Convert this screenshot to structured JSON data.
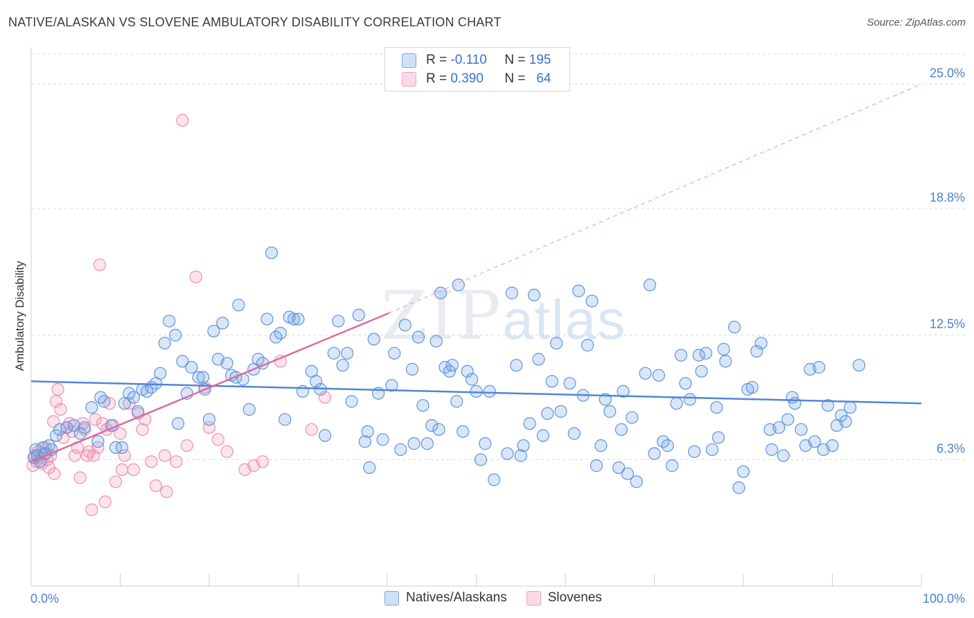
{
  "title": "NATIVE/ALASKAN VS SLOVENE AMBULATORY DISABILITY CORRELATION CHART",
  "source": "Source: ZipAtlas.com",
  "watermark": {
    "zip": "ZIP",
    "atlas": "atlas"
  },
  "legend": {
    "rows": [
      {
        "r_label": "R =",
        "r_value": "-0.110",
        "n_label": "N =",
        "n_value": "195",
        "color": "#7aa8e6"
      },
      {
        "r_label": "R =",
        "r_value": "0.390",
        "n_label": "N =",
        "n_value": "64",
        "color": "#f0a0bb"
      }
    ]
  },
  "bottom_legend": [
    "Natives/Alaskans",
    "Slovenes"
  ],
  "colors": {
    "blue": "#4f86d6",
    "pink": "#e0699a",
    "blue_fill": "rgba(120,165,230,0.28)",
    "pink_fill": "rgba(240,150,180,0.25)"
  },
  "chart_data": {
    "type": "scatter",
    "title": "NATIVE/ALASKAN VS SLOVENE AMBULATORY DISABILITY CORRELATION CHART",
    "xlabel": "",
    "ylabel": "Ambulatory Disability",
    "xlim": [
      0,
      100
    ],
    "ylim": [
      0,
      26.5
    ],
    "x_tick_labels": [
      "0.0%",
      "100.0%"
    ],
    "y_ticks": [
      6.3,
      12.5,
      18.8,
      25.0
    ],
    "y_tick_labels": [
      "6.3%",
      "12.5%",
      "18.8%",
      "25.0%"
    ],
    "grid": true,
    "legend_position": "top-center",
    "series": [
      {
        "name": "Natives/Alaskans",
        "trend": {
          "x": [
            0,
            100
          ],
          "y": [
            10.2,
            9.1
          ]
        },
        "points": [
          [
            0.3,
            6.4
          ],
          [
            0.5,
            6.8
          ],
          [
            0.7,
            6.5
          ],
          [
            1.0,
            6.2
          ],
          [
            1.3,
            6.9
          ],
          [
            1.6,
            6.6
          ],
          [
            2.0,
            7.0
          ],
          [
            2.3,
            6.8
          ],
          [
            2.8,
            7.5
          ],
          [
            3.2,
            7.8
          ],
          [
            4.0,
            7.9
          ],
          [
            4.8,
            8.0
          ],
          [
            5.5,
            7.6
          ],
          [
            6.0,
            7.9
          ],
          [
            6.8,
            8.9
          ],
          [
            7.5,
            7.2
          ],
          [
            7.8,
            9.4
          ],
          [
            8.2,
            9.2
          ],
          [
            9.0,
            8.0
          ],
          [
            9.5,
            6.9
          ],
          [
            10.2,
            6.9
          ],
          [
            10.5,
            9.1
          ],
          [
            11.0,
            9.6
          ],
          [
            11.5,
            9.4
          ],
          [
            12.0,
            8.7
          ],
          [
            12.5,
            9.8
          ],
          [
            13.0,
            9.7
          ],
          [
            13.5,
            9.9
          ],
          [
            14.0,
            10.1
          ],
          [
            14.5,
            10.6
          ],
          [
            15.0,
            12.1
          ],
          [
            15.5,
            13.2
          ],
          [
            16.2,
            12.5
          ],
          [
            16.5,
            8.1
          ],
          [
            17.0,
            11.2
          ],
          [
            17.5,
            9.6
          ],
          [
            18.0,
            10.9
          ],
          [
            18.8,
            10.4
          ],
          [
            19.3,
            10.4
          ],
          [
            19.5,
            9.8
          ],
          [
            20.0,
            8.3
          ],
          [
            20.5,
            12.7
          ],
          [
            21.0,
            11.3
          ],
          [
            21.5,
            13.1
          ],
          [
            22.0,
            11.1
          ],
          [
            22.5,
            10.5
          ],
          [
            23.0,
            10.4
          ],
          [
            23.3,
            14.0
          ],
          [
            23.8,
            10.3
          ],
          [
            24.5,
            8.8
          ],
          [
            25.0,
            10.8
          ],
          [
            25.5,
            11.3
          ],
          [
            26.0,
            11.1
          ],
          [
            26.5,
            13.3
          ],
          [
            27.0,
            16.6
          ],
          [
            27.5,
            12.4
          ],
          [
            28.0,
            12.6
          ],
          [
            28.5,
            8.3
          ],
          [
            29.0,
            13.4
          ],
          [
            29.5,
            13.3
          ],
          [
            30.0,
            13.3
          ],
          [
            30.5,
            9.7
          ],
          [
            31.5,
            10.7
          ],
          [
            32.0,
            10.2
          ],
          [
            32.5,
            9.8
          ],
          [
            33.0,
            7.5
          ],
          [
            34.0,
            11.6
          ],
          [
            34.5,
            13.2
          ],
          [
            35.0,
            11.0
          ],
          [
            35.5,
            11.6
          ],
          [
            36.0,
            9.2
          ],
          [
            36.8,
            13.5
          ],
          [
            37.5,
            7.2
          ],
          [
            37.8,
            7.7
          ],
          [
            38.0,
            5.9
          ],
          [
            38.5,
            12.3
          ],
          [
            39.0,
            9.6
          ],
          [
            39.5,
            7.3
          ],
          [
            40.5,
            10.0
          ],
          [
            40.8,
            11.6
          ],
          [
            41.5,
            6.8
          ],
          [
            42.0,
            13.0
          ],
          [
            42.8,
            10.8
          ],
          [
            43.0,
            7.1
          ],
          [
            43.5,
            12.4
          ],
          [
            44.0,
            9.0
          ],
          [
            44.5,
            7.1
          ],
          [
            45.0,
            8.0
          ],
          [
            45.5,
            12.2
          ],
          [
            45.8,
            7.8
          ],
          [
            46.0,
            14.6
          ],
          [
            46.5,
            10.9
          ],
          [
            47.0,
            10.7
          ],
          [
            47.3,
            11.0
          ],
          [
            47.8,
            9.2
          ],
          [
            48.0,
            15.0
          ],
          [
            48.5,
            7.7
          ],
          [
            49.0,
            10.7
          ],
          [
            49.5,
            10.3
          ],
          [
            50.0,
            9.7
          ],
          [
            50.5,
            6.3
          ],
          [
            51.0,
            7.1
          ],
          [
            51.5,
            9.7
          ],
          [
            52.0,
            5.3
          ],
          [
            53.5,
            6.6
          ],
          [
            54.0,
            14.6
          ],
          [
            54.5,
            11.0
          ],
          [
            55.0,
            6.5
          ],
          [
            55.3,
            7.0
          ],
          [
            56.0,
            8.1
          ],
          [
            56.5,
            14.5
          ],
          [
            57.0,
            11.3
          ],
          [
            57.5,
            7.5
          ],
          [
            58.0,
            8.6
          ],
          [
            58.5,
            10.2
          ],
          [
            59.0,
            12.1
          ],
          [
            59.5,
            8.7
          ],
          [
            60.5,
            10.1
          ],
          [
            61.0,
            7.6
          ],
          [
            61.5,
            14.7
          ],
          [
            62.0,
            9.5
          ],
          [
            62.5,
            12.0
          ],
          [
            63.0,
            14.2
          ],
          [
            63.5,
            6.0
          ],
          [
            64.0,
            7.0
          ],
          [
            64.5,
            9.3
          ],
          [
            65.0,
            8.7
          ],
          [
            66.0,
            5.9
          ],
          [
            66.3,
            7.8
          ],
          [
            66.5,
            9.7
          ],
          [
            67.0,
            5.6
          ],
          [
            67.5,
            8.4
          ],
          [
            68.0,
            5.2
          ],
          [
            69.0,
            10.6
          ],
          [
            69.5,
            15.0
          ],
          [
            70.0,
            6.6
          ],
          [
            70.5,
            10.5
          ],
          [
            71.0,
            7.2
          ],
          [
            71.5,
            7.0
          ],
          [
            72.0,
            6.0
          ],
          [
            72.5,
            9.1
          ],
          [
            73.0,
            11.5
          ],
          [
            73.5,
            10.1
          ],
          [
            74.0,
            9.3
          ],
          [
            74.5,
            6.7
          ],
          [
            75.0,
            11.5
          ],
          [
            75.3,
            10.7
          ],
          [
            75.8,
            11.6
          ],
          [
            76.5,
            6.8
          ],
          [
            77.0,
            8.9
          ],
          [
            77.2,
            7.4
          ],
          [
            77.8,
            11.8
          ],
          [
            78.0,
            11.2
          ],
          [
            79.0,
            12.9
          ],
          [
            79.5,
            4.9
          ],
          [
            80.0,
            5.7
          ],
          [
            80.5,
            9.8
          ],
          [
            81.0,
            9.9
          ],
          [
            81.5,
            11.7
          ],
          [
            82.0,
            12.1
          ],
          [
            83.0,
            7.8
          ],
          [
            83.2,
            6.8
          ],
          [
            84.0,
            7.9
          ],
          [
            84.5,
            6.5
          ],
          [
            85.0,
            8.3
          ],
          [
            85.5,
            9.4
          ],
          [
            85.8,
            9.1
          ],
          [
            86.5,
            7.8
          ],
          [
            87.0,
            7.0
          ],
          [
            87.5,
            10.8
          ],
          [
            88.0,
            7.2
          ],
          [
            88.5,
            10.9
          ],
          [
            89.0,
            6.8
          ],
          [
            89.5,
            9.0
          ],
          [
            90.0,
            7.0
          ],
          [
            90.5,
            8.0
          ],
          [
            91.0,
            8.5
          ],
          [
            91.5,
            8.2
          ],
          [
            92.0,
            8.9
          ],
          [
            93.0,
            11.0
          ]
        ]
      },
      {
        "name": "Slovenes",
        "trend": {
          "x": [
            0,
            40.2
          ],
          "y": [
            6.2,
            13.6
          ],
          "dashed_extension": {
            "x": [
              40.2,
              100
            ],
            "y": [
              13.6,
              25.0
            ]
          }
        },
        "points": [
          [
            0.2,
            6.0
          ],
          [
            0.4,
            6.5
          ],
          [
            0.6,
            6.2
          ],
          [
            0.8,
            6.7
          ],
          [
            1.0,
            6.4
          ],
          [
            1.2,
            6.1
          ],
          [
            1.4,
            6.6
          ],
          [
            1.6,
            6.9
          ],
          [
            1.8,
            6.3
          ],
          [
            2.0,
            5.9
          ],
          [
            2.2,
            6.5
          ],
          [
            2.5,
            8.2
          ],
          [
            2.6,
            5.6
          ],
          [
            2.8,
            9.2
          ],
          [
            3.0,
            9.8
          ],
          [
            3.3,
            8.8
          ],
          [
            3.6,
            7.4
          ],
          [
            4.0,
            7.9
          ],
          [
            4.3,
            8.1
          ],
          [
            4.6,
            7.7
          ],
          [
            4.9,
            6.5
          ],
          [
            5.2,
            6.9
          ],
          [
            5.5,
            5.4
          ],
          [
            5.8,
            8.1
          ],
          [
            6.0,
            7.8
          ],
          [
            6.3,
            6.5
          ],
          [
            6.5,
            6.7
          ],
          [
            6.8,
            3.8
          ],
          [
            7.0,
            6.5
          ],
          [
            7.2,
            8.3
          ],
          [
            7.5,
            6.9
          ],
          [
            7.7,
            16.0
          ],
          [
            8.0,
            8.1
          ],
          [
            8.3,
            4.2
          ],
          [
            8.5,
            7.8
          ],
          [
            8.8,
            9.1
          ],
          [
            9.2,
            8.0
          ],
          [
            9.5,
            5.2
          ],
          [
            10.0,
            7.6
          ],
          [
            10.2,
            5.8
          ],
          [
            10.5,
            6.5
          ],
          [
            11.0,
            9.1
          ],
          [
            11.5,
            5.8
          ],
          [
            12.0,
            8.6
          ],
          [
            12.5,
            7.8
          ],
          [
            12.8,
            8.3
          ],
          [
            13.5,
            6.2
          ],
          [
            14.0,
            5.0
          ],
          [
            15.0,
            6.5
          ],
          [
            15.2,
            4.7
          ],
          [
            16.3,
            6.2
          ],
          [
            17.0,
            23.2
          ],
          [
            17.5,
            7.0
          ],
          [
            18.5,
            15.4
          ],
          [
            19.5,
            9.9
          ],
          [
            20.0,
            7.9
          ],
          [
            21.0,
            7.3
          ],
          [
            22.0,
            6.7
          ],
          [
            24.0,
            5.8
          ],
          [
            25.0,
            6.0
          ],
          [
            26.0,
            6.2
          ],
          [
            28.0,
            11.2
          ],
          [
            31.5,
            7.8
          ],
          [
            33.0,
            9.4
          ]
        ]
      }
    ]
  }
}
